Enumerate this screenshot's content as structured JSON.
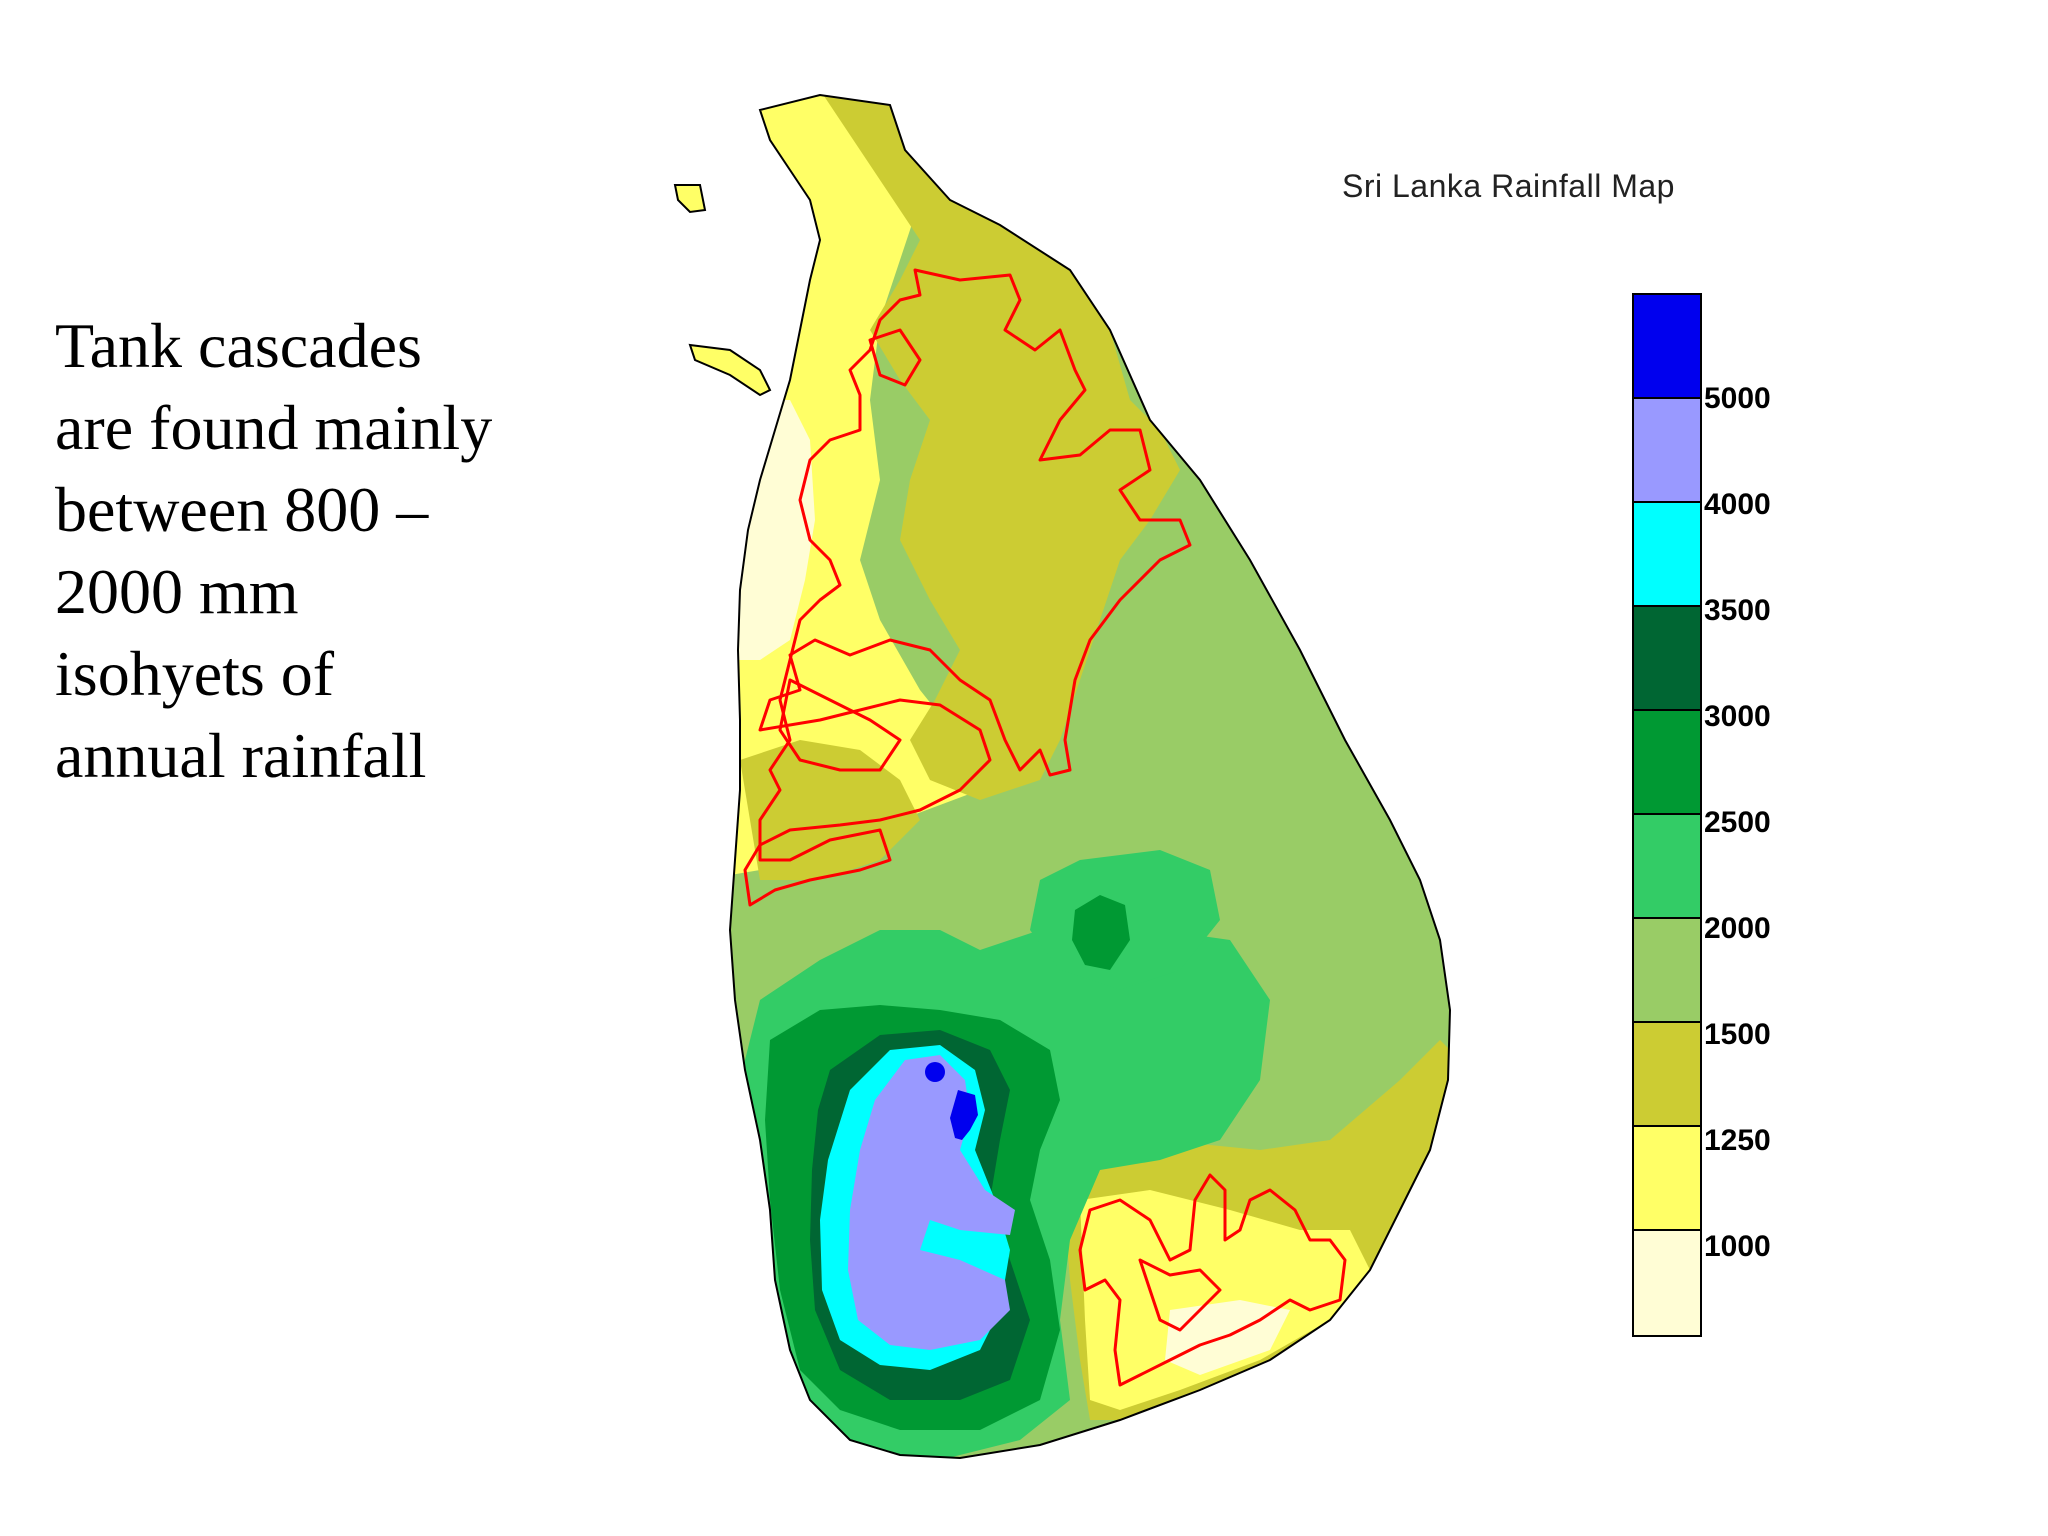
{
  "slide_text": {
    "lines": [
      "Tank cascades",
      "are found mainly",
      "between 800 –",
      "2000 mm",
      "isohyets of",
      "annual rainfall"
    ]
  },
  "map": {
    "title": "Sri Lanka Rainfall Map",
    "zones": [
      {
        "name": "<1000",
        "color": "#fffdd5"
      },
      {
        "name": "1000-1250",
        "color": "#ffff66"
      },
      {
        "name": "1250-1500",
        "color": "#cccc33"
      },
      {
        "name": "1500-2000",
        "color": "#99cc66"
      },
      {
        "name": "2000-2500",
        "color": "#33cc66"
      },
      {
        "name": "2500-3000",
        "color": "#009933"
      },
      {
        "name": "3000-3500",
        "color": "#006633"
      },
      {
        "name": "3500-4000",
        "color": "#00ffff"
      },
      {
        "name": "4000-5000",
        "color": "#9999ff"
      },
      {
        "name": ">5000",
        "color": "#0000ee"
      }
    ],
    "cascade_outline_color": "#ff0000",
    "legend": {
      "labels": [
        "5000",
        "4000",
        "3500",
        "3000",
        "2500",
        "2000",
        "1500",
        "1250",
        "1000"
      ],
      "swatches": [
        "#0000ee",
        "#9999ff",
        "#00ffff",
        "#006633",
        "#009933",
        "#33cc66",
        "#99cc66",
        "#cccc33",
        "#ffff66",
        "#fffdd5"
      ]
    }
  }
}
